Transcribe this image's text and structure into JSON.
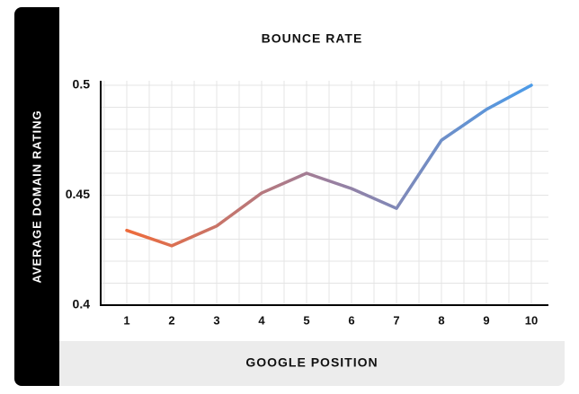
{
  "chart_data": {
    "type": "line",
    "title": "BOUNCE RATE",
    "x_label": "GOOGLE POSITION",
    "y_label": "AVERAGE DOMAIN RATING",
    "categories": [
      "1",
      "2",
      "3",
      "4",
      "5",
      "6",
      "7",
      "8",
      "9",
      "10"
    ],
    "values": [
      0.434,
      0.427,
      0.436,
      0.451,
      0.46,
      0.453,
      0.444,
      0.475,
      0.489,
      0.5
    ],
    "gradient": [
      "#ee6b3b",
      "#9a7f9f",
      "#4c9be8"
    ],
    "ylim": [
      0.4,
      0.5
    ],
    "yticks": [
      0.4,
      0.45,
      0.5
    ],
    "grid": true
  }
}
